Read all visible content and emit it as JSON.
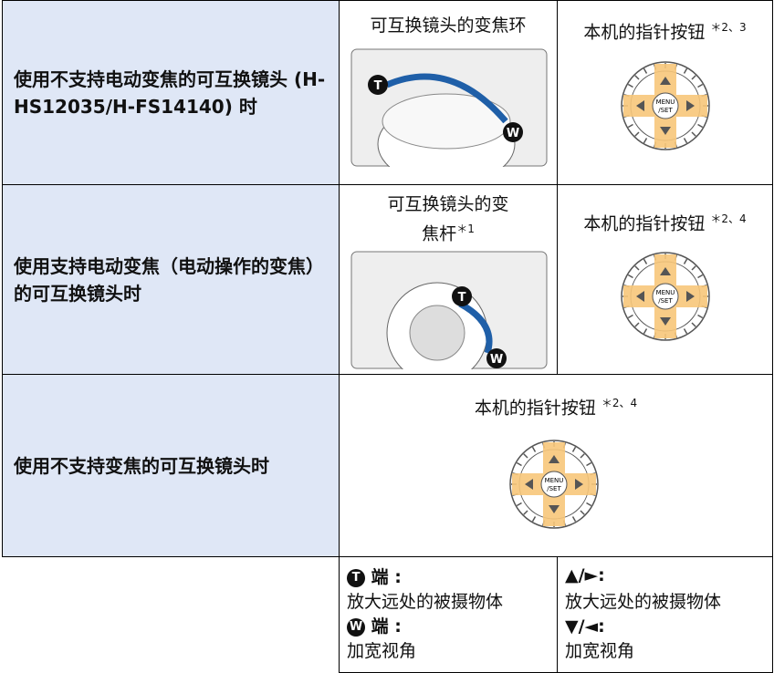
{
  "rows": [
    {
      "condition": "使用不支持电动变焦的可互换镜头 (H-HS12035/H-FS14140) 时",
      "lens_control": "可互换镜头的变焦环",
      "lens_note": null,
      "camera_control": "本机的指针按钮",
      "camera_note": "＊2、3"
    },
    {
      "condition": "使用支持电动变焦（电动操作的变焦）的可互换镜头时",
      "lens_control": "可互换镜头的变焦杆",
      "lens_note": "＊1",
      "camera_control": "本机的指针按钮",
      "camera_note": "＊2、4"
    },
    {
      "condition": "使用不支持变焦的可互换镜头时",
      "camera_control": "本机的指针按钮",
      "camera_note": "＊2、4"
    }
  ],
  "icons": {
    "tele": "T",
    "wide": "W",
    "dial_top": "MENU",
    "dial_bottom": "/SET"
  },
  "legend": {
    "lens": {
      "tele_label": "端 :",
      "tele_desc": "放大远处的被摄物体",
      "wide_label": "端 :",
      "wide_desc": "加宽视角"
    },
    "camera": {
      "tele_label": "▲/►:",
      "tele_desc": "放大远处的被摄物体",
      "wide_label": "▼/◄:",
      "wide_desc": "加宽视角"
    }
  }
}
